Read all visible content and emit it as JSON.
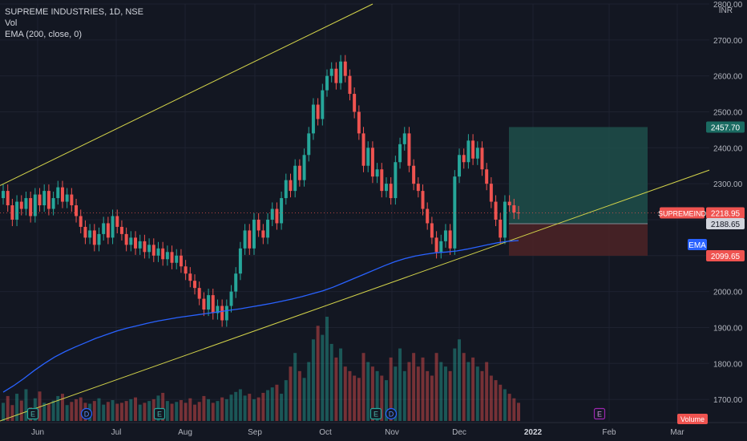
{
  "legend": {
    "symbol_line": "SUPREME INDUSTRIES, 1D, NSE",
    "vol_label": "Vol",
    "ema_label": "EMA (200, close, 0)"
  },
  "currency": "INR",
  "colors": {
    "background": "#131722",
    "up": "#26a69a",
    "down": "#ef5350",
    "ema": "#2962ff",
    "trendline": "#d4d44a",
    "target_zone": "#1f4f4a",
    "stop_zone": "#4a2226",
    "text": "#b2b5be",
    "grid": "#1e2230"
  },
  "chart_data": {
    "type": "candlestick",
    "ylim": [
      1640,
      2800
    ],
    "y_ticks": [
      1700,
      1800,
      1900,
      2000,
      2100,
      2200,
      2300,
      2400,
      2500,
      2600,
      2700,
      2800
    ],
    "y_tick_labels": [
      "1700.00",
      "1800.00",
      "1900.00",
      "2000.00",
      "2100.00",
      "2200.00",
      "2300.00",
      "2400.00",
      "2500.00",
      "2600.00",
      "2700.00",
      "2800.00"
    ],
    "x_ticks": [
      "Jun",
      "Jul",
      "Aug",
      "Sep",
      "Oct",
      "Nov",
      "Dec",
      "2022",
      "Feb",
      "Mar"
    ],
    "price_labels": [
      {
        "text": "2457.70",
        "value": 2457.7,
        "kind": "target"
      },
      {
        "text": "2218.95",
        "value": 2218.95,
        "kind": "last",
        "tag": "SUPREMEIND"
      },
      {
        "text": "2188.65",
        "value": 2188.65,
        "kind": "entry"
      },
      {
        "text": "EMA",
        "value": 2142,
        "kind": "ema"
      },
      {
        "text": "2099.65",
        "value": 2099.65,
        "kind": "stop"
      }
    ],
    "volume_tag": "Volume",
    "event_markers": [
      {
        "label": "E",
        "style": "earnings"
      },
      {
        "label": "D",
        "style": "dividend"
      },
      {
        "label": "E",
        "style": "earnings"
      },
      {
        "label": "E",
        "style": "earnings"
      },
      {
        "label": "D",
        "style": "dividend"
      },
      {
        "label": "E",
        "style": "earnings_future"
      }
    ],
    "closes": [
      2280,
      2240,
      2200,
      2250,
      2230,
      2260,
      2210,
      2270,
      2240,
      2280,
      2230,
      2260,
      2290,
      2250,
      2270,
      2240,
      2210,
      2180,
      2150,
      2170,
      2130,
      2160,
      2190,
      2150,
      2210,
      2180,
      2160,
      2130,
      2150,
      2120,
      2140,
      2110,
      2130,
      2100,
      2120,
      2090,
      2110,
      2080,
      2100,
      2070,
      2050,
      2030,
      2010,
      1980,
      1950,
      1990,
      1940,
      1960,
      1920,
      1960,
      2000,
      2050,
      2120,
      2170,
      2120,
      2200,
      2170,
      2150,
      2200,
      2230,
      2190,
      2260,
      2310,
      2280,
      2350,
      2310,
      2380,
      2440,
      2520,
      2480,
      2560,
      2600,
      2620,
      2580,
      2640,
      2600,
      2550,
      2500,
      2440,
      2350,
      2400,
      2320,
      2340,
      2280,
      2300,
      2260,
      2360,
      2410,
      2440,
      2350,
      2300,
      2280,
      2230,
      2190,
      2150,
      2110,
      2140,
      2170,
      2120,
      2320,
      2380,
      2360,
      2420,
      2370,
      2400,
      2340,
      2300,
      2250,
      2200,
      2150,
      2250,
      2240,
      2220,
      2218.95
    ],
    "ema_values": [
      1720,
      1738,
      1758,
      1780,
      1800,
      1818,
      1833,
      1846,
      1858,
      1870,
      1880,
      1890,
      1898,
      1905,
      1912,
      1918,
      1923,
      1928,
      1932,
      1936,
      1940,
      1944,
      1948,
      1952,
      1957,
      1962,
      1967,
      1973,
      1979,
      1986,
      1994,
      2002,
      2012,
      2024,
      2036,
      2048,
      2060,
      2072,
      2083,
      2092,
      2099,
      2104,
      2108,
      2110,
      2113,
      2118,
      2124,
      2130,
      2136,
      2140,
      2142
    ],
    "volumes": [
      40,
      55,
      35,
      60,
      45,
      70,
      30,
      50,
      65,
      40,
      38,
      45,
      55,
      60,
      35,
      42,
      48,
      52,
      40,
      38,
      44,
      50,
      36,
      42,
      46,
      38,
      40,
      44,
      48,
      52,
      36,
      40,
      44,
      48,
      56,
      62,
      44,
      38,
      42,
      46,
      40,
      50,
      36,
      42,
      55,
      48,
      40,
      44,
      52,
      48,
      58,
      64,
      70,
      56,
      60,
      48,
      52,
      62,
      68,
      74,
      80,
      60,
      90,
      120,
      150,
      110,
      95,
      130,
      180,
      210,
      190,
      230,
      170,
      140,
      160,
      120,
      110,
      100,
      95,
      150,
      130,
      120,
      110,
      100,
      90,
      140,
      120,
      160,
      110,
      130,
      150,
      120,
      140,
      110,
      100,
      150,
      130,
      120,
      110,
      160,
      180,
      150,
      130,
      140,
      120,
      110,
      130,
      100,
      90,
      80,
      70,
      60,
      50,
      40
    ]
  }
}
